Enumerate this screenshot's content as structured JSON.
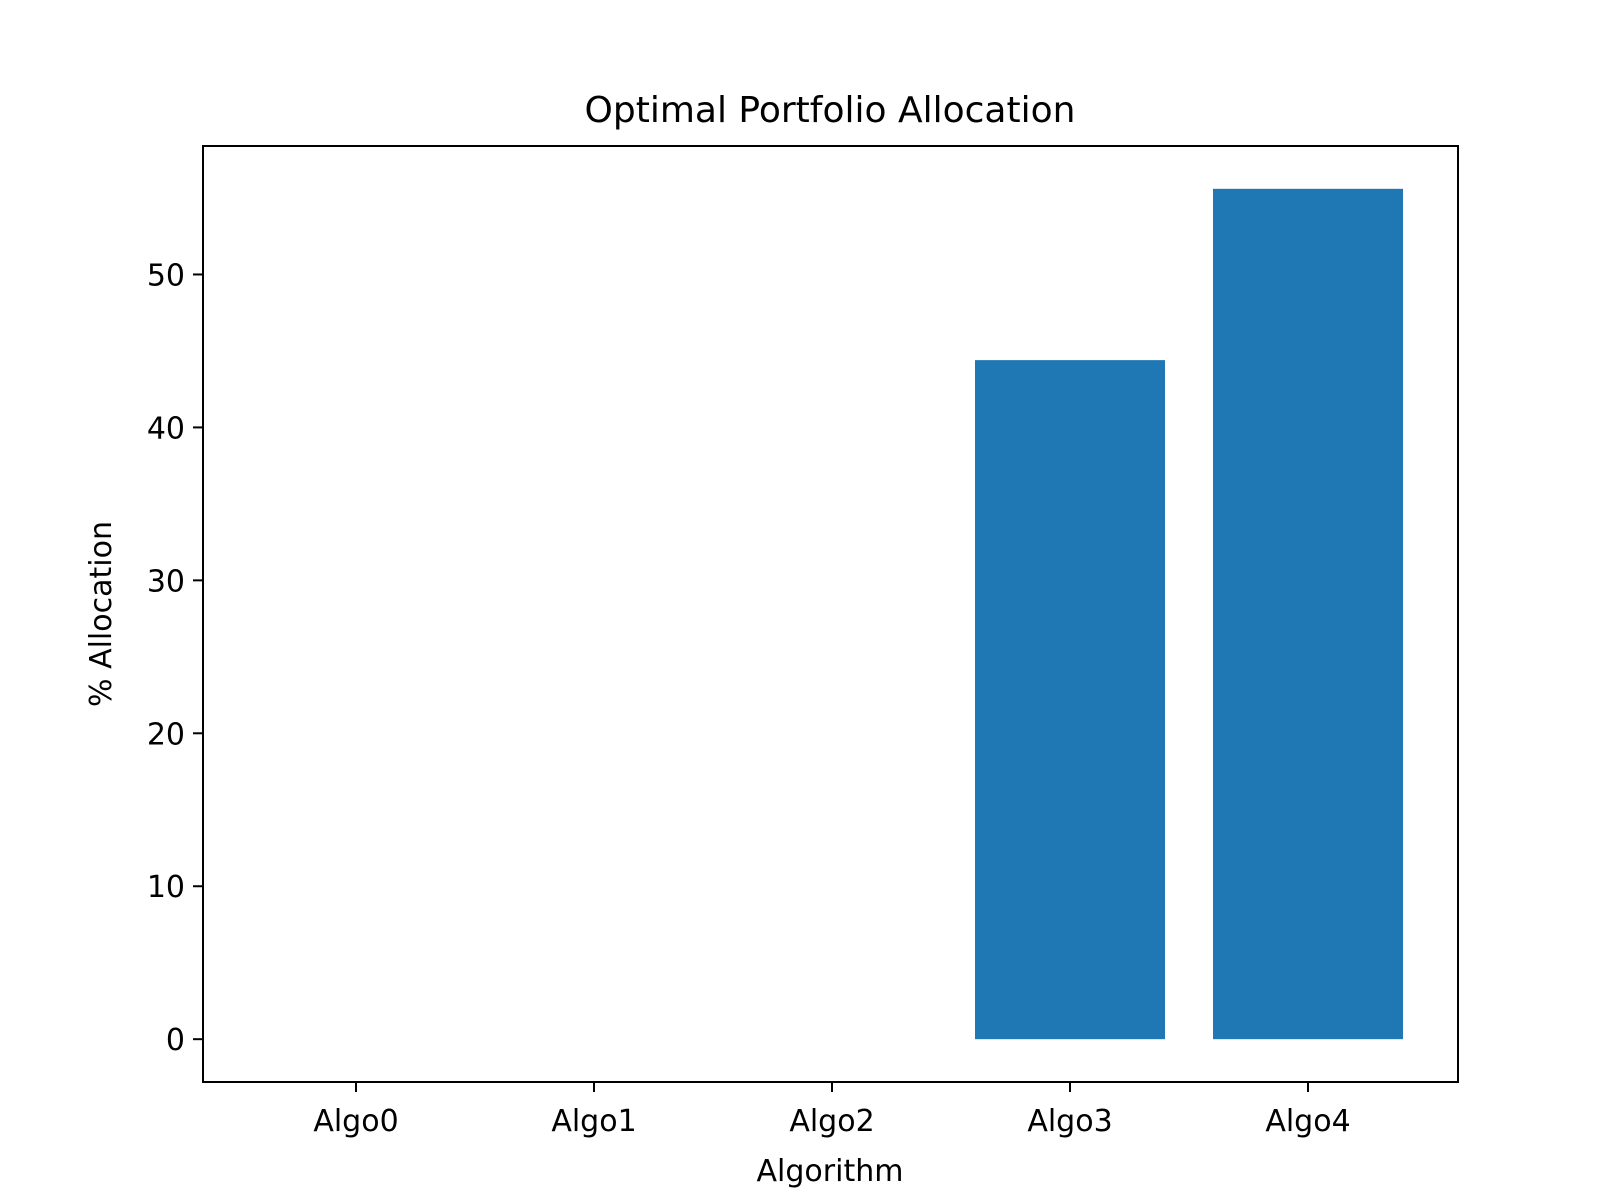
{
  "chart_data": {
    "type": "bar",
    "title": "Optimal Portfolio Allocation",
    "xlabel": "Algorithm",
    "ylabel": "% Allocation",
    "categories": [
      "Algo0",
      "Algo1",
      "Algo2",
      "Algo3",
      "Algo4"
    ],
    "values": [
      0,
      0,
      0,
      44.4,
      55.6
    ],
    "ylim": [
      -2.8,
      58.4
    ],
    "yticks": [
      "0",
      "10",
      "20",
      "30",
      "40",
      "50"
    ],
    "grid": false,
    "legend": "none",
    "colors": {
      "bar": "#1f77b4",
      "axes": "#000000",
      "background": "#ffffff"
    }
  }
}
